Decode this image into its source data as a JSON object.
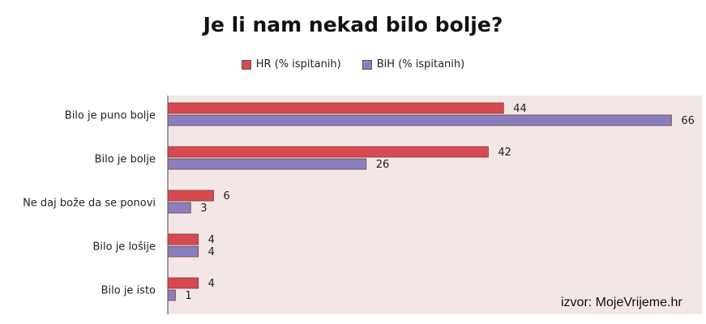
{
  "title": "Je li nam nekad bilo bolje?",
  "source": "izvor: MojeVrijeme.hr",
  "colors": {
    "hr": "#d64a4f",
    "bih": "#8a7fbe",
    "plot_bg": "#f3e6e6",
    "border": "#7a3a3a"
  },
  "chart_data": {
    "type": "bar",
    "orientation": "horizontal",
    "title": "Je li nam nekad bilo bolje?",
    "categories": [
      "Bilo je puno bolje",
      "Bilo je bolje",
      "Ne daj bože da se ponovi",
      "Bilo je lošije",
      "Bilo je isto"
    ],
    "series": [
      {
        "name": "HR (% ispitanih)",
        "values": [
          44,
          42,
          6,
          4,
          4
        ]
      },
      {
        "name": "BiH (% ispitanih)",
        "values": [
          66,
          26,
          3,
          4,
          1
        ]
      }
    ],
    "xlim": [
      0,
      70
    ],
    "grid": false,
    "legend_position": "top"
  }
}
